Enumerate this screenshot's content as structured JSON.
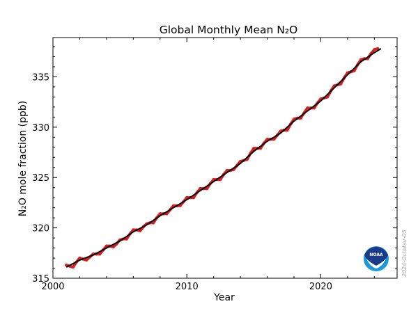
{
  "chart_data": {
    "type": "line",
    "title": "Global Monthly Mean N₂O",
    "xlabel": "Year",
    "ylabel": "N₂O mole fraction (ppb)",
    "xlim": [
      2000,
      2025.7
    ],
    "ylim": [
      315,
      338.9
    ],
    "xticks": [
      2000,
      2010,
      2020
    ],
    "yticks": [
      315,
      320,
      325,
      330,
      335
    ],
    "grid": false,
    "series": [
      {
        "style": "monthly mean",
        "color": "#d62020",
        "x_start": 2001.0,
        "x_step": 0.25,
        "values": [
          316.3,
          316.2,
          316.1,
          316.6,
          317.0,
          316.9,
          316.8,
          317.1,
          317.4,
          317.4,
          317.4,
          317.8,
          318.2,
          318.2,
          318.1,
          318.4,
          318.8,
          318.9,
          318.9,
          319.4,
          319.8,
          319.8,
          319.7,
          320.1,
          320.4,
          320.5,
          320.5,
          321.0,
          321.4,
          321.4,
          321.4,
          321.8,
          322.2,
          322.2,
          322.2,
          322.6,
          323.0,
          323.0,
          323.0,
          323.5,
          323.9,
          323.9,
          323.9,
          324.4,
          324.8,
          324.8,
          324.8,
          325.3,
          325.7,
          325.7,
          325.8,
          326.2,
          326.6,
          326.7,
          326.8,
          327.4,
          327.9,
          327.9,
          327.9,
          328.4,
          328.8,
          328.8,
          328.8,
          329.2,
          329.6,
          329.7,
          329.7,
          330.3,
          330.8,
          330.9,
          330.9,
          331.4,
          331.9,
          331.9,
          331.9,
          332.4,
          332.8,
          332.9,
          333.0,
          333.6,
          334.1,
          334.2,
          334.3,
          334.9,
          335.4,
          335.5,
          335.6,
          336.2,
          336.7,
          336.8,
          336.8,
          337.3,
          337.7,
          337.8
        ]
      },
      {
        "style": "trend",
        "color": "#000000",
        "x": [
          2001,
          2002,
          2003,
          2004,
          2005,
          2006,
          2007,
          2008,
          2009,
          2010,
          2011,
          2012,
          2013,
          2014,
          2015,
          2016,
          2017,
          2018,
          2019,
          2020,
          2021,
          2022,
          2023,
          2024,
          2024.5
        ],
        "values": [
          316.1,
          316.8,
          317.3,
          318.0,
          318.7,
          319.6,
          320.3,
          321.2,
          322.0,
          322.8,
          323.7,
          324.6,
          325.5,
          326.4,
          327.6,
          328.6,
          329.4,
          330.6,
          331.6,
          332.6,
          333.9,
          335.2,
          336.5,
          337.4,
          337.8
        ]
      }
    ]
  },
  "logo": {
    "text": "NOAA",
    "colors": {
      "dark": "#1a3a8a",
      "light": "#1a9ad6"
    }
  },
  "stamp": "2024-October-05"
}
